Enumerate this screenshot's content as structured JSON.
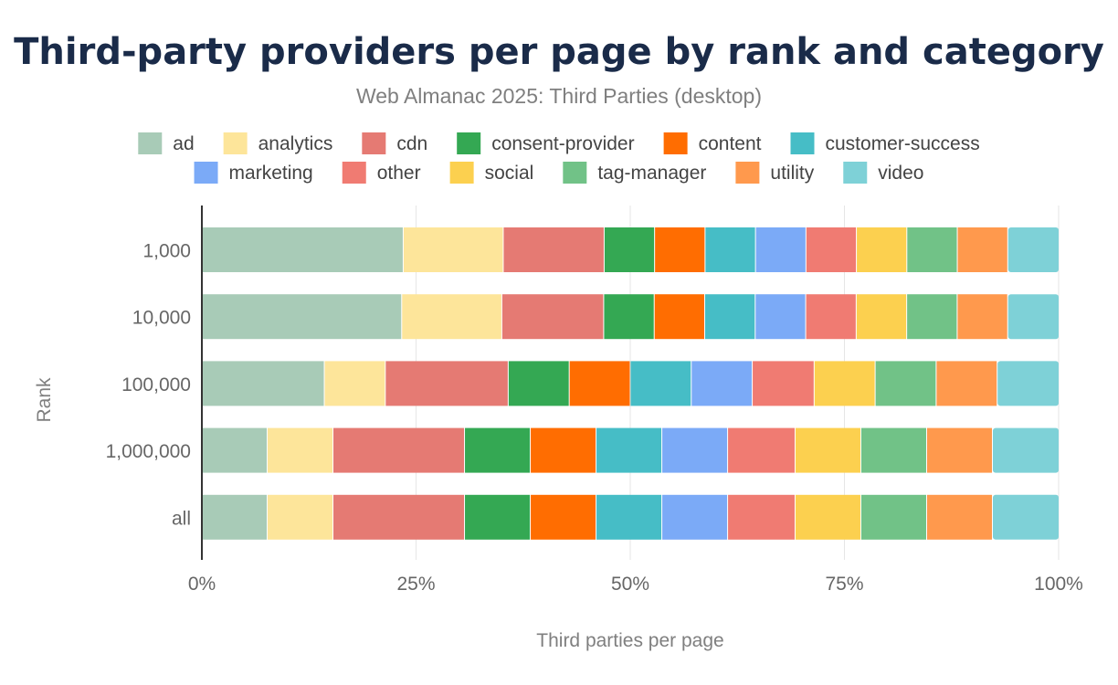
{
  "chart_data": {
    "type": "bar",
    "orientation": "horizontal",
    "stacked": true,
    "normalized": true,
    "title": "Third-party providers per page by rank and category",
    "subtitle": "Web Almanac 2025: Third Parties (desktop)",
    "xlabel": "Third parties per page",
    "ylabel": "Rank",
    "xlim": [
      0,
      100
    ],
    "x_ticks": [
      "0%",
      "25%",
      "50%",
      "75%",
      "100%"
    ],
    "grid": true,
    "legend_position": "top",
    "categories": [
      "1,000",
      "10,000",
      "100,000",
      "1,000,000",
      "all"
    ],
    "series": [
      {
        "name": "ad",
        "color": "#a8cbb7",
        "values": [
          23.6,
          23.4,
          14.3,
          7.7,
          7.7
        ]
      },
      {
        "name": "analytics",
        "color": "#fde59a",
        "values": [
          11.7,
          11.7,
          7.1,
          7.7,
          7.7
        ]
      },
      {
        "name": "cdn",
        "color": "#e57a73",
        "values": [
          11.8,
          11.9,
          14.3,
          15.4,
          15.4
        ]
      },
      {
        "name": "consent-provider",
        "color": "#34a853",
        "values": [
          5.9,
          5.9,
          7.1,
          7.7,
          7.7
        ]
      },
      {
        "name": "content",
        "color": "#ff6d01",
        "values": [
          5.9,
          5.9,
          7.1,
          7.7,
          7.7
        ]
      },
      {
        "name": "customer-success",
        "color": "#46bdc6",
        "values": [
          5.9,
          5.9,
          7.1,
          7.7,
          7.7
        ]
      },
      {
        "name": "marketing",
        "color": "#7baaf7",
        "values": [
          5.9,
          5.9,
          7.1,
          7.7,
          7.7
        ]
      },
      {
        "name": "other",
        "color": "#f07b72",
        "values": [
          5.9,
          5.9,
          7.2,
          7.9,
          7.9
        ]
      },
      {
        "name": "social",
        "color": "#fcd04f",
        "values": [
          5.9,
          5.9,
          7.1,
          7.7,
          7.7
        ]
      },
      {
        "name": "tag-manager",
        "color": "#71c287",
        "values": [
          5.9,
          5.9,
          7.1,
          7.7,
          7.7
        ]
      },
      {
        "name": "utility",
        "color": "#ff994d",
        "values": [
          5.9,
          5.9,
          7.1,
          7.7,
          7.7
        ]
      },
      {
        "name": "video",
        "color": "#7ed1d7",
        "values": [
          5.9,
          5.9,
          7.1,
          7.7,
          7.7
        ]
      }
    ]
  }
}
